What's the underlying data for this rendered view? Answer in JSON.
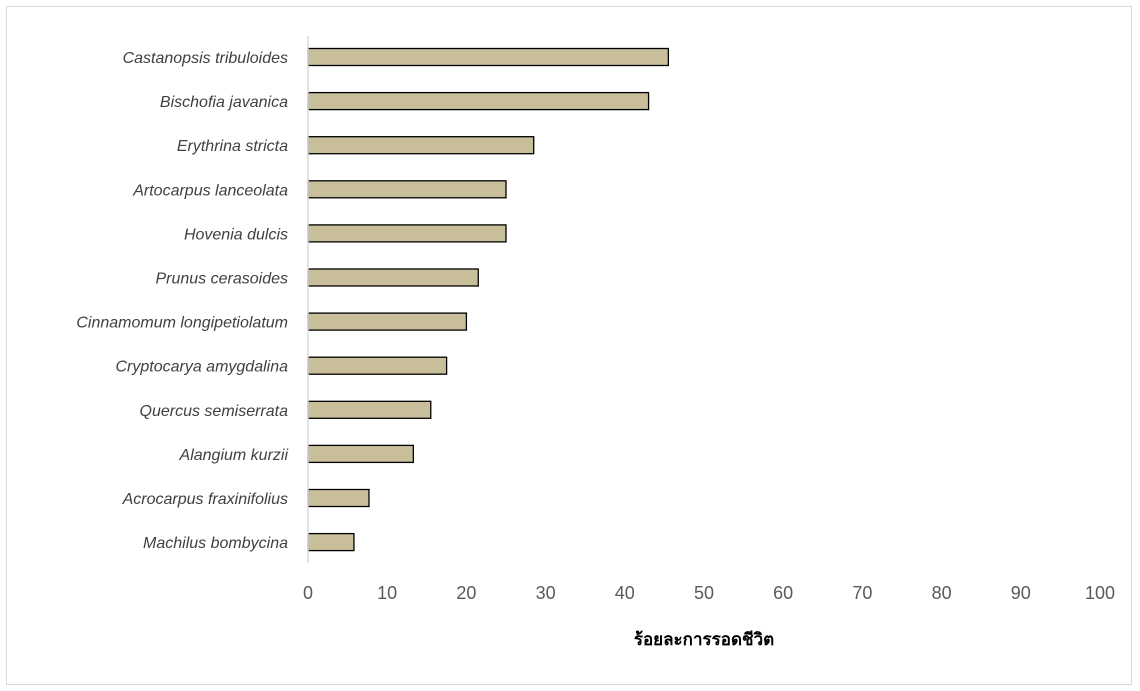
{
  "chart_data": {
    "type": "bar",
    "orientation": "horizontal",
    "categories": [
      "Castanopsis tribuloides",
      "Bischofia javanica",
      "Erythrina stricta",
      "Artocarpus lanceolata",
      "Hovenia dulcis",
      "Prunus cerasoides",
      "Cinnamomum longipetiolatum",
      "Cryptocarya amygdalina",
      "Quercus semiserrata",
      "Alangium kurzii",
      "Acrocarpus fraxinifolius",
      "Machilus bombycina"
    ],
    "values": [
      45.5,
      43,
      28.5,
      25,
      25,
      21.5,
      20,
      17.5,
      15.5,
      13.3,
      7.7,
      5.8
    ],
    "xlabel": "ร้อยละการรอดชีวิต",
    "xlim": [
      0,
      100
    ],
    "xticks": [
      0,
      10,
      20,
      30,
      40,
      50,
      60,
      70,
      80,
      90,
      100
    ],
    "grid": false,
    "legend": "none",
    "bar_color": "#c8bf9a",
    "bar_edge_color": "#000000",
    "axis_line_color": "#d9d9d9"
  }
}
